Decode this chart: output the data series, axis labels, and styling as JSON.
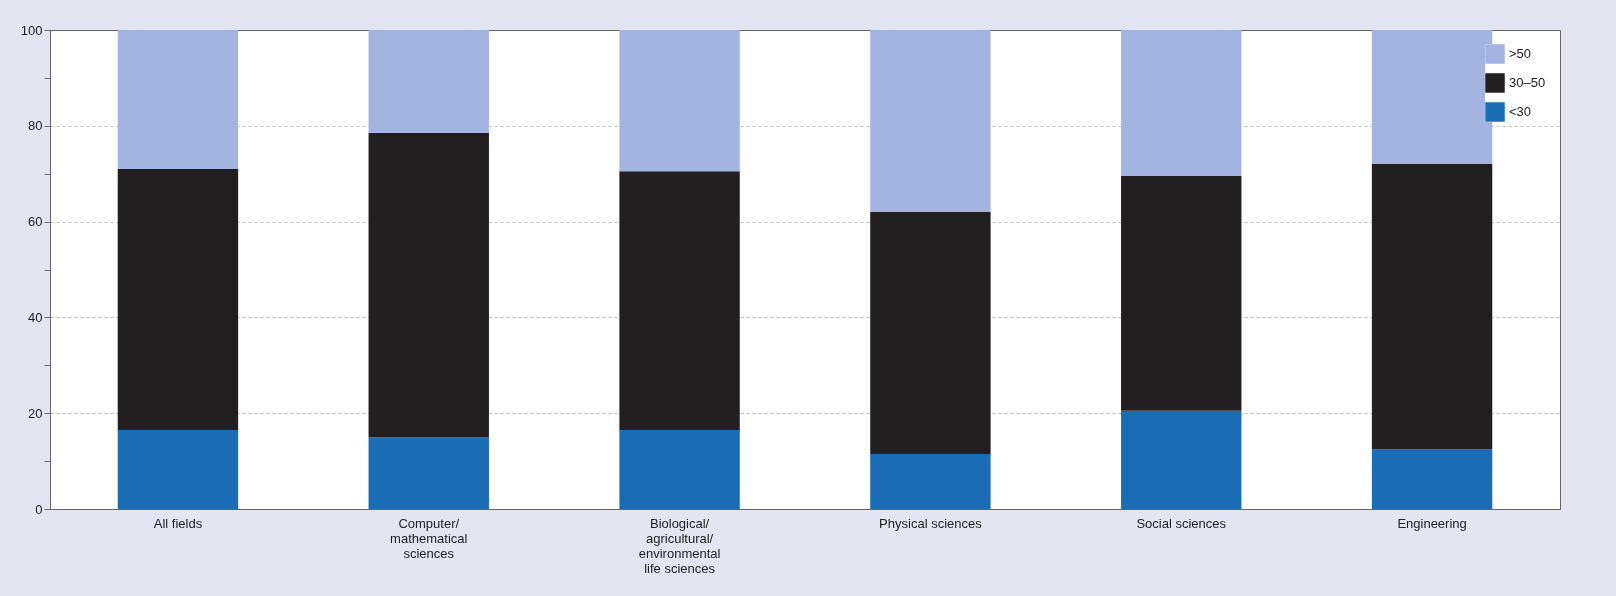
{
  "chart_data": {
    "type": "bar",
    "stacked": true,
    "categories": [
      "All fields",
      "Computer/mathematical sciences",
      "Biological/agricultural/environmental life sciences",
      "Physical sciences",
      "Social sciences",
      "Engineering"
    ],
    "series": [
      {
        "name": "<30",
        "color": "#1a6db5",
        "values": [
          16.5,
          15,
          16.5,
          11.5,
          20.5,
          12.5
        ]
      },
      {
        "name": "30–50",
        "color": "#231f20",
        "values": [
          54.5,
          63.5,
          54,
          50.5,
          49,
          59.5
        ]
      },
      {
        "name": ">50",
        "color": "#a3b4e0",
        "values": [
          29,
          21.5,
          29.5,
          38,
          30.5,
          28
        ]
      }
    ],
    "ylim": [
      0,
      100
    ],
    "yticks": [
      0,
      {
        "value": 10,
        "label": null
      },
      20,
      {
        "value": 30,
        "label": null
      },
      40,
      {
        "value": 50,
        "label": null
      },
      60,
      {
        "value": 70,
        "label": null
      },
      80,
      {
        "value": 90,
        "label": null
      },
      100
    ],
    "grid": "y",
    "legend": "top right"
  }
}
